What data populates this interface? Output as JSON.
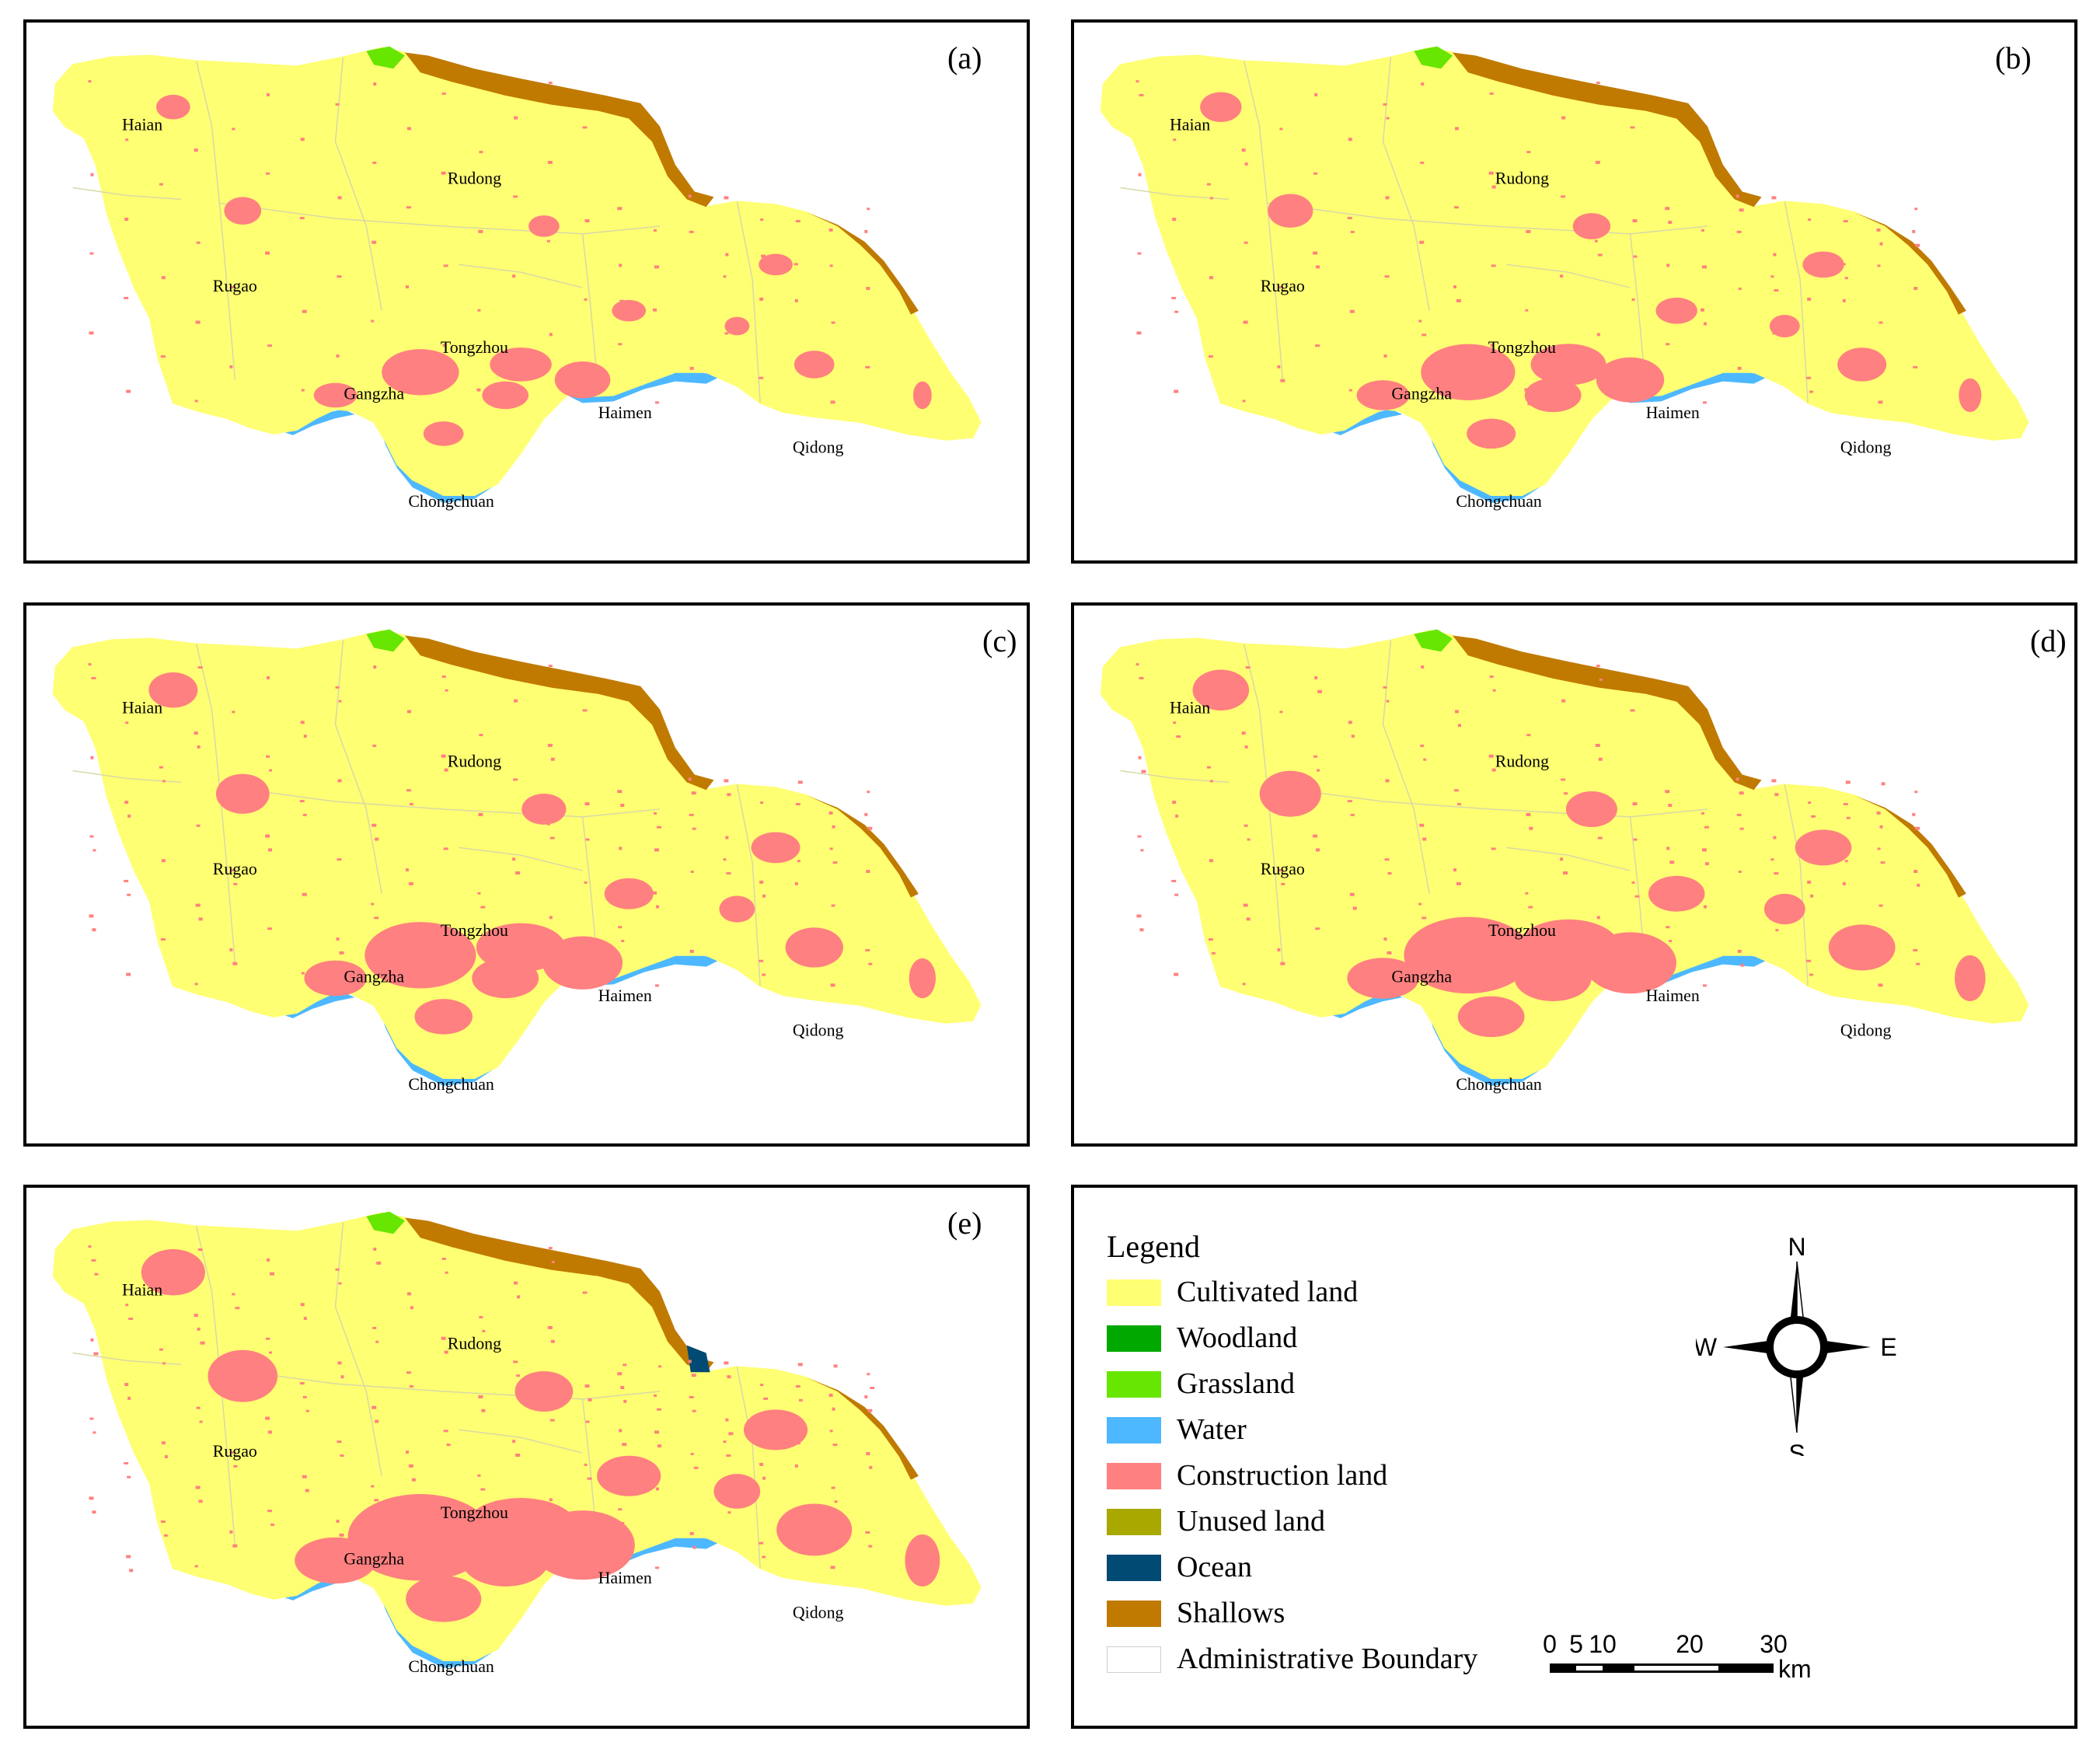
{
  "panels": [
    {
      "id": "a",
      "label": "(a)"
    },
    {
      "id": "b",
      "label": "(b)"
    },
    {
      "id": "c",
      "label": "(c)"
    },
    {
      "id": "d",
      "label": "(d)"
    },
    {
      "id": "e",
      "label": "(e)"
    }
  ],
  "places": {
    "haian": "Haian",
    "rudong": "Rudong",
    "rugao": "Rugao",
    "tongzhou": "Tongzhou",
    "gangzha": "Gangzha",
    "haimen": "Haimen",
    "qidong": "Qidong",
    "chongchuan": "Chongchuan"
  },
  "legend": {
    "title": "Legend",
    "items": [
      {
        "label": "Cultivated land",
        "color": "#ffff73"
      },
      {
        "label": "Woodland",
        "color": "#00a800"
      },
      {
        "label": "Grassland",
        "color": "#66e600"
      },
      {
        "label": "Water",
        "color": "#4db8ff"
      },
      {
        "label": "Construction land",
        "color": "#ff8080"
      },
      {
        "label": "Unused land",
        "color": "#a8a800"
      },
      {
        "label": "Ocean",
        "color": "#004a73"
      },
      {
        "label": "Shallows",
        "color": "#c07a00"
      },
      {
        "label": "Administrative Boundary",
        "color": "#ffffff"
      }
    ]
  },
  "compass": {
    "n": "N",
    "s": "S",
    "e": "E",
    "w": "W"
  },
  "scale": {
    "ticks": [
      "0",
      "5",
      "10",
      "20",
      "30"
    ],
    "unit": "km"
  },
  "map_colors": {
    "cultivated": "#ffff73",
    "construction": "#ff8080",
    "water": "#4db8ff",
    "shallows": "#c07a00",
    "grassland": "#66e600",
    "ocean": "#004a73",
    "boundary": "#d8d8a8"
  }
}
